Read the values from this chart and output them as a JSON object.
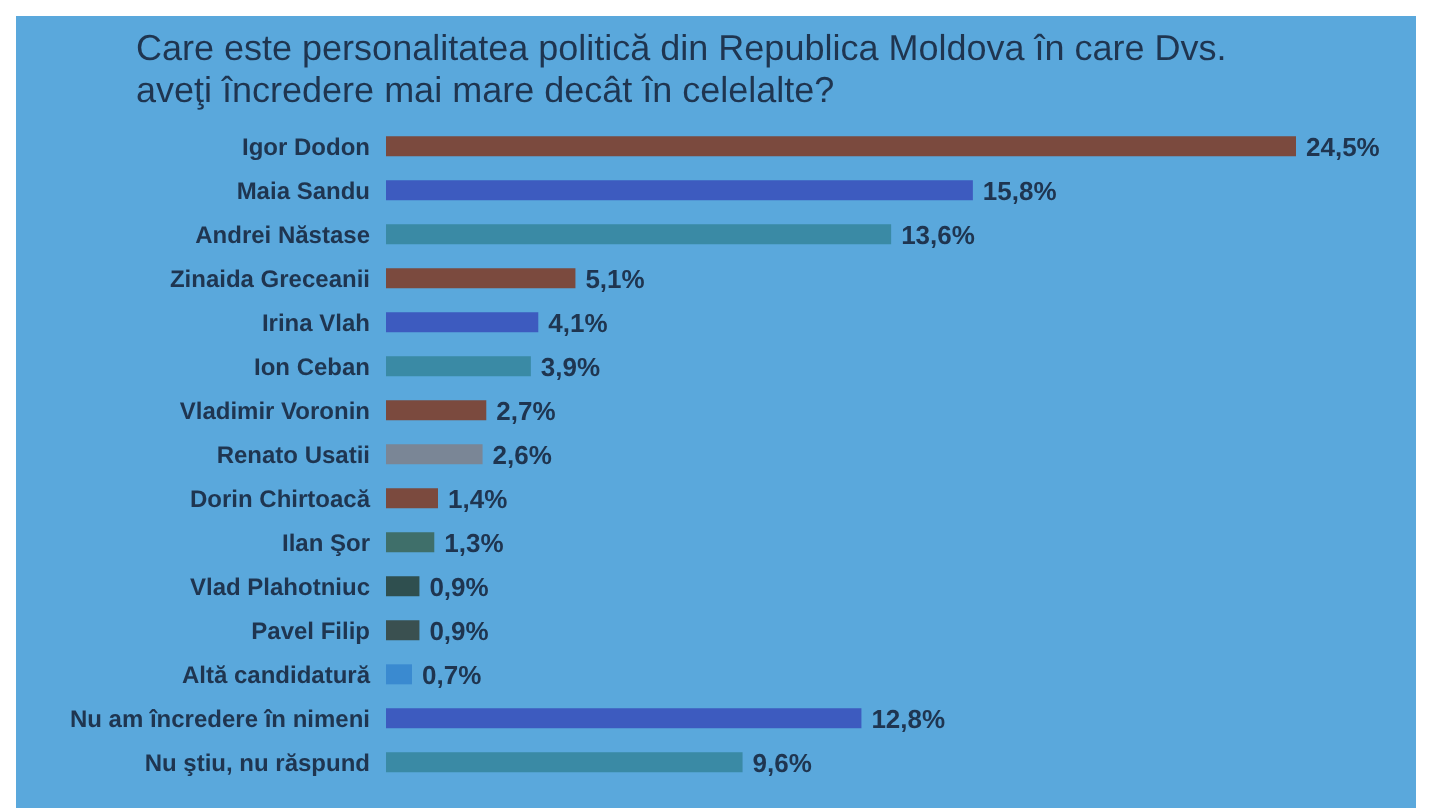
{
  "chart_data": {
    "type": "bar",
    "orientation": "horizontal",
    "title": "Care este personalitatea politică din Republica Moldova în care Dvs. aveţi încredere mai mare decât în celelalte?",
    "categories": [
      "Igor Dodon",
      "Maia Sandu",
      "Andrei Năstase",
      "Zinaida Greceanii",
      "Irina Vlah",
      "Ion Ceban",
      "Vladimir Voronin",
      "Renato Usatii",
      "Dorin Chirtoacă",
      "Ilan Şor",
      "Vlad Plahotniuc",
      "Pavel Filip",
      "Altă candidatură",
      "Nu am încredere în nimeni",
      "Nu ştiu, nu răspund"
    ],
    "values": [
      24.5,
      15.8,
      13.6,
      5.1,
      4.1,
      3.9,
      2.7,
      2.6,
      1.4,
      1.3,
      0.9,
      0.9,
      0.7,
      12.8,
      9.6
    ],
    "value_labels": [
      "24,5%",
      "15,8%",
      "13,6%",
      "5,1%",
      "4,1%",
      "3,9%",
      "2,7%",
      "2,6%",
      "1,4%",
      "1,3%",
      "0,9%",
      "0,9%",
      "0,7%",
      "12,8%",
      "9,6%"
    ],
    "colors": [
      "#7b4a3e",
      "#3d5bbf",
      "#3a8aa5",
      "#7b4a3e",
      "#3d5bbf",
      "#3a8aa5",
      "#7b4a3e",
      "#7a8696",
      "#7b4a3e",
      "#3f6f6a",
      "#2f4f4f",
      "#3a5050",
      "#3a8ad0",
      "#3d5bbf",
      "#3a8aa5"
    ]
  }
}
